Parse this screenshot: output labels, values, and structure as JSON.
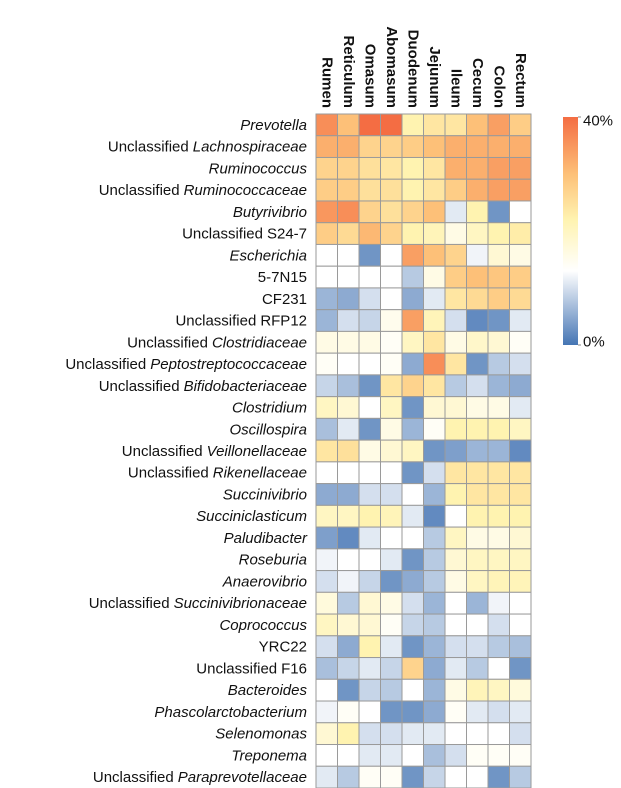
{
  "chart_data": {
    "type": "heatmap",
    "columns": [
      "Rumen",
      "Reticulum",
      "Omasum",
      "Abomasum",
      "Duodenum",
      "Jejunum",
      "Ileum",
      "Cecum",
      "Colon",
      "Rectum"
    ],
    "rows": [
      {
        "taxon": "Prevotella",
        "italic": true
      },
      {
        "prefix": "Unclassified",
        "taxon": "Lachnospiraceae",
        "italic": true
      },
      {
        "taxon": "Ruminococcus",
        "italic": true
      },
      {
        "prefix": "Unclassified",
        "taxon": "Ruminococcaceae",
        "italic": true
      },
      {
        "taxon": "Butyrivibrio",
        "italic": true
      },
      {
        "prefix": "Unclassified",
        "taxon": "S24-7",
        "italic": false
      },
      {
        "taxon": "Escherichia",
        "italic": true
      },
      {
        "taxon": "5-7N15",
        "italic": false
      },
      {
        "taxon": "CF231",
        "italic": false
      },
      {
        "prefix": "Unclassified",
        "taxon": "RFP12",
        "italic": false
      },
      {
        "prefix": "Unclassified",
        "taxon": "Clostridiaceae",
        "italic": true
      },
      {
        "prefix": "Unclassified",
        "taxon": "Peptostreptococcaceae",
        "italic": true
      },
      {
        "prefix": "Unclassified",
        "taxon": "Bifidobacteriaceae",
        "italic": true
      },
      {
        "taxon": "Clostridium",
        "italic": true
      },
      {
        "taxon": "Oscillospira",
        "italic": true
      },
      {
        "prefix": "Unclassified",
        "taxon": "Veillonellaceae",
        "italic": true
      },
      {
        "prefix": "Unclassified",
        "taxon": "Rikenellaceae",
        "italic": true
      },
      {
        "taxon": "Succinivibrio",
        "italic": true
      },
      {
        "taxon": "Succiniclasticum",
        "italic": true
      },
      {
        "taxon": "Paludibacter",
        "italic": true
      },
      {
        "taxon": "Roseburia",
        "italic": true
      },
      {
        "taxon": "Anaerovibrio",
        "italic": true
      },
      {
        "prefix": "Unclassified",
        "taxon": "Succinivibrionaceae",
        "italic": true
      },
      {
        "taxon": "Coprococcus",
        "italic": true
      },
      {
        "taxon": "YRC22",
        "italic": false
      },
      {
        "prefix": "Unclassified",
        "taxon": "F16",
        "italic": false
      },
      {
        "taxon": "Bacteroides",
        "italic": true
      },
      {
        "taxon": "Phascolarctobacterium",
        "italic": true
      },
      {
        "taxon": "Selenomonas",
        "italic": true
      },
      {
        "taxon": "Treponema",
        "italic": true
      },
      {
        "prefix": "Unclassified",
        "taxon": "Paraprevotellaceae",
        "italic": true
      }
    ],
    "values": [
      [
        36,
        30,
        40,
        40,
        22,
        24,
        24,
        30,
        34,
        28
      ],
      [
        32,
        32,
        27,
        27,
        28,
        30,
        32,
        32,
        32,
        32
      ],
      [
        27,
        27,
        25,
        24,
        22,
        24,
        32,
        32,
        34,
        34
      ],
      [
        28,
        28,
        25,
        25,
        22,
        24,
        28,
        32,
        34,
        34
      ],
      [
        35,
        36,
        27,
        25,
        27,
        30,
        11,
        22,
        3,
        13
      ],
      [
        28,
        26,
        31,
        27,
        22,
        21,
        16,
        20,
        22,
        23
      ],
      [
        13,
        13,
        3,
        13,
        34,
        30,
        27,
        12,
        18,
        16
      ],
      [
        13,
        13,
        13,
        13,
        8,
        16,
        28,
        30,
        29,
        28
      ],
      [
        6,
        5,
        10,
        13,
        5,
        11,
        24,
        26,
        28,
        26
      ],
      [
        6,
        10,
        9,
        15,
        34,
        21,
        10,
        2,
        3,
        11
      ],
      [
        16,
        16,
        16,
        14,
        20,
        24,
        16,
        19,
        18,
        14
      ],
      [
        14,
        13,
        13,
        14,
        5,
        36,
        24,
        3,
        8,
        10
      ],
      [
        9,
        7,
        3,
        24,
        27,
        24,
        8,
        10,
        6,
        5
      ],
      [
        20,
        18,
        13,
        20,
        3,
        18,
        18,
        16,
        16,
        11
      ],
      [
        7,
        11,
        3,
        16,
        6,
        14,
        22,
        22,
        22,
        20
      ],
      [
        24,
        25,
        16,
        18,
        20,
        3,
        4,
        6,
        6,
        2
      ],
      [
        13,
        13,
        13,
        13,
        3,
        10,
        24,
        24,
        24,
        24
      ],
      [
        5,
        5,
        10,
        10,
        13,
        6,
        22,
        24,
        24,
        24
      ],
      [
        20,
        20,
        22,
        21,
        11,
        2,
        13,
        22,
        22,
        22
      ],
      [
        4,
        2,
        11,
        13,
        13,
        8,
        20,
        16,
        16,
        18
      ],
      [
        12,
        13,
        13,
        11,
        3,
        8,
        18,
        20,
        20,
        20
      ],
      [
        10,
        12,
        9,
        3,
        5,
        8,
        16,
        20,
        21,
        21
      ],
      [
        17,
        8,
        18,
        16,
        10,
        6,
        13,
        6,
        12,
        13
      ],
      [
        20,
        18,
        18,
        14,
        9,
        8,
        13,
        13,
        10,
        13
      ],
      [
        10,
        5,
        22,
        11,
        3,
        6,
        10,
        10,
        8,
        7
      ],
      [
        7,
        9,
        11,
        9,
        27,
        5,
        11,
        8,
        13,
        3
      ],
      [
        13,
        3,
        9,
        8,
        13,
        6,
        16,
        21,
        20,
        17
      ],
      [
        12,
        14,
        13,
        3,
        3,
        5,
        14,
        11,
        10,
        11
      ],
      [
        18,
        22,
        10,
        10,
        11,
        11,
        13,
        13,
        13,
        10
      ],
      [
        13,
        13,
        11,
        11,
        13,
        7,
        10,
        14,
        14,
        14
      ],
      [
        11,
        8,
        14,
        14,
        3,
        9,
        13,
        13,
        3,
        8
      ]
    ],
    "clim": [
      0,
      40
    ],
    "cticks": [
      {
        "value": 0,
        "label": "0%"
      },
      {
        "value": 40,
        "label": "40%"
      }
    ],
    "colorscale": [
      [
        0,
        "#4575b4"
      ],
      [
        13,
        "#ffffff"
      ],
      [
        22,
        "#fff3b0"
      ],
      [
        30,
        "#fdc078"
      ],
      [
        40,
        "#f46d43"
      ]
    ]
  }
}
